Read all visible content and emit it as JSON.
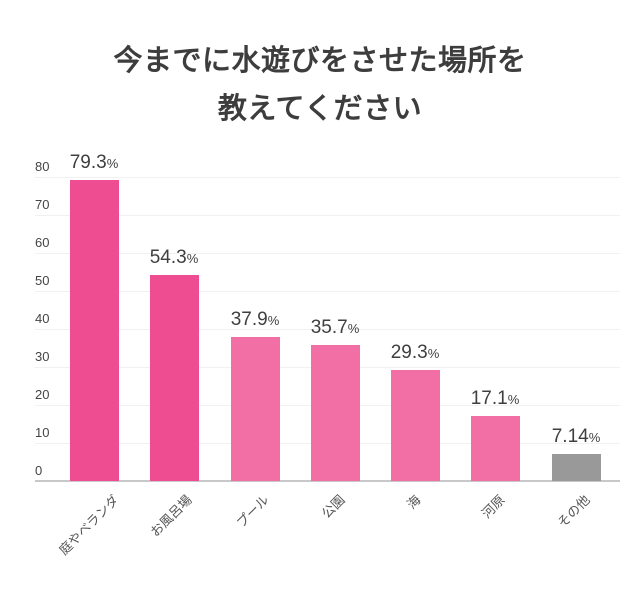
{
  "title": {
    "line1": "今までに水遊びをさせた場所を",
    "line2": "教えてください"
  },
  "colors": {
    "primary_dark": "#EE4E91",
    "primary_light": "#F26FA6",
    "other": "#999999",
    "grid": "#F1F1F1",
    "axis": "#C8C8C8",
    "text": "#3D3D3D"
  },
  "axis": {
    "ticks": [
      "80",
      "70",
      "60",
      "50",
      "40",
      "30",
      "20",
      "10",
      "0"
    ]
  },
  "bars": [
    {
      "label": "庭やベランダ",
      "value": "79.3",
      "unit": "%"
    },
    {
      "label": "お風呂場",
      "value": "54.3",
      "unit": "%"
    },
    {
      "label": "プール",
      "value": "37.9",
      "unit": "%"
    },
    {
      "label": "公園",
      "value": "35.7",
      "unit": "%"
    },
    {
      "label": "海",
      "value": "29.3",
      "unit": "%"
    },
    {
      "label": "河原",
      "value": "17.1",
      "unit": "%"
    },
    {
      "label": "その他",
      "value": "7.14",
      "unit": "%"
    }
  ],
  "chart_data": {
    "type": "bar",
    "title": "今までに水遊びをさせた場所を教えてください",
    "categories": [
      "庭やベランダ",
      "お風呂場",
      "プール",
      "公園",
      "海",
      "河原",
      "その他"
    ],
    "values": [
      79.3,
      54.3,
      37.9,
      35.7,
      29.3,
      17.1,
      7.14
    ],
    "value_suffix": "%",
    "xlabel": "",
    "ylabel": "",
    "ylim": [
      0,
      80
    ],
    "yticks": [
      0,
      10,
      20,
      30,
      40,
      50,
      60,
      70,
      80
    ],
    "grid": true,
    "legend": null,
    "bar_colors": [
      "#EE4E91",
      "#EE4E91",
      "#F26FA6",
      "#F26FA6",
      "#F26FA6",
      "#F26FA6",
      "#999999"
    ]
  }
}
